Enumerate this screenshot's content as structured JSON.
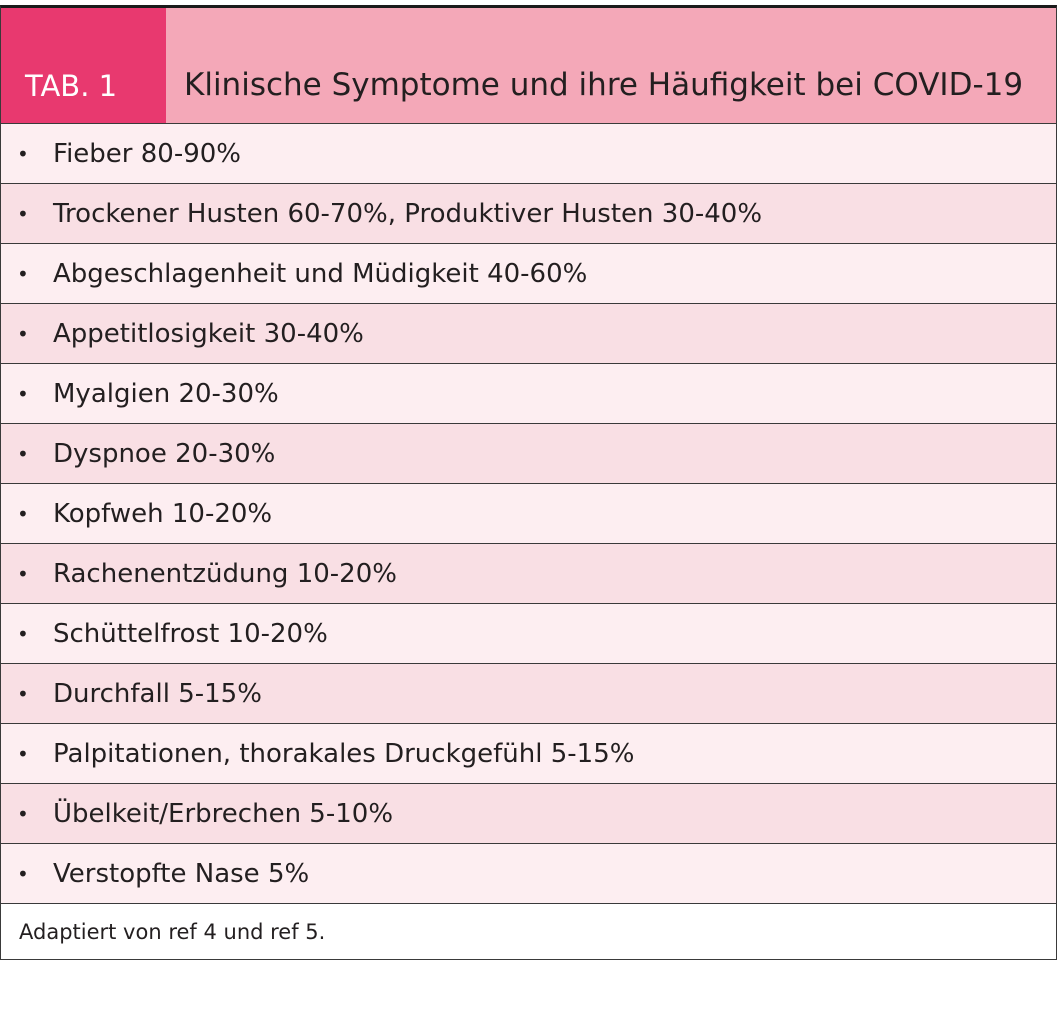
{
  "header": {
    "label": "TAB. 1",
    "title": "Klinische Symptome und ihre Häufigkeit bei COVID-19"
  },
  "rows": [
    "Fieber 80-90%",
    "Trockener Husten 60-70%, Produktiver Husten 30-40%",
    "Abgeschlagenheit und Müdigkeit 40-60%",
    "Appetitlosigkeit 30-40%",
    "Myalgien 20-30%",
    "Dyspnoe 20-30%",
    "Kopfweh 10-20%",
    "Rachenentzüdung 10-20%",
    "Schüttelfrost 10-20%",
    "Durchfall 5-15%",
    "Palpitationen, thorakales Druckgefühl 5-15%",
    "Übelkeit/Erbrechen 5-10%",
    "Verstopfte Nase 5%"
  ],
  "footnote": "Adaptiert von ref 4 und ref 5."
}
